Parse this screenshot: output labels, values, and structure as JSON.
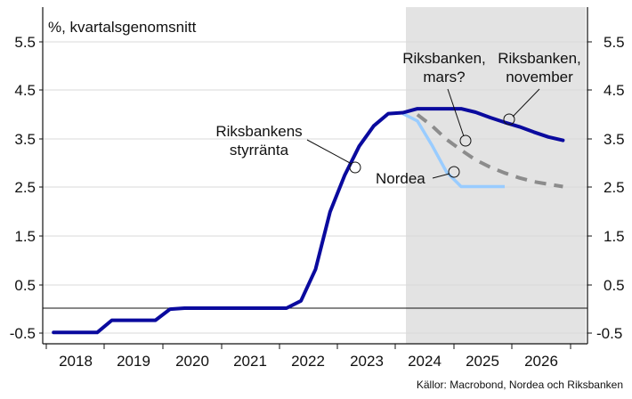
{
  "chart": {
    "unit_label": "%, kvartalsgenomsnitt",
    "source": "Källor: Macrobond, Nordea och Riksbanken",
    "annotations": {
      "styrranta_line1": "Riksbankens",
      "styrranta_line2": "styrränta",
      "mars_line1": "Riksbanken,",
      "mars_line2": "mars?",
      "november_line1": "Riksbanken,",
      "november_line2": "november",
      "nordea": "Nordea"
    },
    "colors": {
      "styrranta": "#0a0a9e",
      "nordea": "#99ccff",
      "mars": "#8c8c8c",
      "forecast_shade": "#e3e3e3"
    }
  },
  "chart_data": {
    "type": "line",
    "title": "",
    "ylabel": "%, kvartalsgenomsnitt",
    "xlabel": "",
    "ylim": [
      -0.65,
      6.1
    ],
    "yticks": [
      -0.5,
      0.5,
      1.5,
      2.5,
      3.5,
      4.5,
      5.5
    ],
    "ytick_labels": [
      "-0.5",
      "0.5",
      "1.5",
      "2.5",
      "3.5",
      "4.5",
      "5.5"
    ],
    "xticks": [
      "2018",
      "2019",
      "2020",
      "2021",
      "2022",
      "2023",
      "2024",
      "2025",
      "2026"
    ],
    "grid": true,
    "shaded_forecast_region_start": "2024Q1",
    "series": [
      {
        "name": "Riksbankens styrränta / Riksbanken, november",
        "x": [
          "2018Q1",
          "2018Q2",
          "2018Q3",
          "2018Q4",
          "2019Q1",
          "2019Q2",
          "2019Q3",
          "2019Q4",
          "2020Q1",
          "2020Q2",
          "2020Q3",
          "2020Q4",
          "2021Q1",
          "2021Q2",
          "2021Q3",
          "2021Q4",
          "2022Q1",
          "2022Q2",
          "2022Q3",
          "2022Q4",
          "2023Q1",
          "2023Q2",
          "2023Q3",
          "2023Q4",
          "2024Q1",
          "2024Q2",
          "2024Q3",
          "2024Q4",
          "2025Q1",
          "2025Q2",
          "2025Q3",
          "2025Q4",
          "2026Q1",
          "2026Q2",
          "2026Q3",
          "2026Q4"
        ],
        "values": [
          -0.5,
          -0.5,
          -0.5,
          -0.5,
          -0.25,
          -0.25,
          -0.25,
          -0.25,
          -0.02,
          0,
          0,
          0,
          0,
          0,
          0,
          0,
          0,
          0.15,
          0.8,
          1.98,
          2.73,
          3.33,
          3.75,
          4.0,
          4.02,
          4.1,
          4.1,
          4.1,
          4.1,
          4.03,
          3.92,
          3.82,
          3.73,
          3.62,
          3.52,
          3.45
        ]
      },
      {
        "name": "Nordea",
        "x": [
          "2024Q1",
          "2024Q2",
          "2024Q3",
          "2024Q4",
          "2025Q1",
          "2025Q2",
          "2025Q3",
          "2025Q4"
        ],
        "values": [
          4.0,
          3.85,
          3.35,
          2.8,
          2.5,
          2.5,
          2.5,
          2.5
        ]
      },
      {
        "name": "Riksbanken, mars?",
        "x": [
          "2024Q2",
          "2024Q3",
          "2024Q4",
          "2025Q1",
          "2025Q2",
          "2025Q3",
          "2025Q4",
          "2026Q1",
          "2026Q2",
          "2026Q3",
          "2026Q4"
        ],
        "values": [
          3.98,
          3.75,
          3.47,
          3.25,
          3.05,
          2.9,
          2.78,
          2.68,
          2.6,
          2.55,
          2.5
        ]
      }
    ]
  }
}
